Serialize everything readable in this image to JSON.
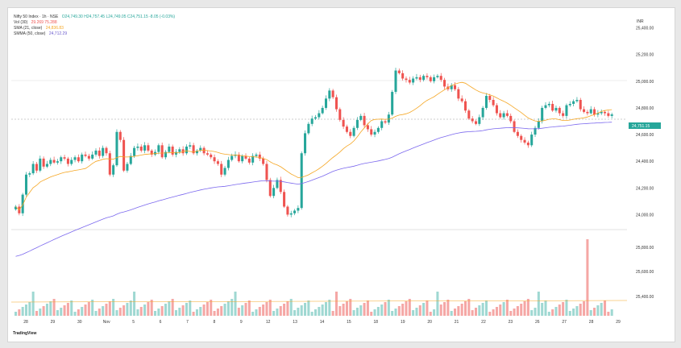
{
  "legend": {
    "symbol": "Nifty 50 Index · 1h · NSE",
    "ohlc": "O24,749.30  H24,757.45  L24,749.05  C24,751.15  -8.05 (-0.03%)",
    "vol_label": "Vol (30)",
    "vol_values": "29.269  75.288",
    "sma_label": "SMA (21, close)",
    "sma_value": "24,836.83",
    "smma_label": "SMMA (50, close)",
    "smma_value": "24,712.29"
  },
  "currency": "INR",
  "brand": "TradingView",
  "colors": {
    "up": "#26a69a",
    "down": "#ef5350",
    "sma": "#f5a623",
    "smma": "#7b68ee",
    "vol_up": "#9fd8d2",
    "vol_down": "#f5a7a5"
  },
  "chart_data": {
    "type": "candlestick",
    "price_axis": [
      "25,400.00",
      "25,200.00",
      "25,000.00",
      "24,800.00",
      "24,600.00",
      "24,400.00",
      "24,200.00",
      "24,000.00"
    ],
    "volume_axis": [
      "25,800.00",
      "25,600.00",
      "25,400.00"
    ],
    "ylim": [
      23900,
      25500
    ],
    "last_price_label": "24,751.15",
    "x_ticks": [
      "28",
      "29",
      "30",
      "Nov",
      "5",
      "6",
      "7",
      "8",
      "9",
      "12",
      "13",
      "14",
      "15",
      "18",
      "19",
      "20",
      "21",
      "22",
      "23",
      "26",
      "27",
      "28",
      "29"
    ],
    "closes": [
      24060,
      24010,
      24150,
      24300,
      24310,
      24380,
      24330,
      24420,
      24360,
      24380,
      24410,
      24390,
      24400,
      24430,
      24420,
      24380,
      24410,
      24430,
      24400,
      24450,
      24440,
      24420,
      24450,
      24480,
      24440,
      24500,
      24460,
      24300,
      24370,
      24620,
      24560,
      24330,
      24380,
      24440,
      24500,
      24510,
      24480,
      24520,
      24480,
      24450,
      24470,
      24520,
      24430,
      24470,
      24510,
      24450,
      24470,
      24490,
      24460,
      24510,
      24520,
      24460,
      24480,
      24500,
      24460,
      24450,
      24430,
      24400,
      24380,
      24300,
      24350,
      24410,
      24440,
      24450,
      24400,
      24440,
      24420,
      24390,
      24440,
      24450,
      24420,
      24380,
      24260,
      24140,
      24200,
      24260,
      24170,
      24060,
      24000,
      24010,
      24030,
      24050,
      24460,
      24610,
      24680,
      24720,
      24730,
      24760,
      24800,
      24870,
      24930,
      24880,
      24790,
      24710,
      24660,
      24620,
      24590,
      24650,
      24710,
      24740,
      24670,
      24640,
      24600,
      24620,
      24650,
      24700,
      24690,
      24750,
      24920,
      25080,
      25060,
      25020,
      25010,
      24990,
      25020,
      25030,
      25010,
      25040,
      25030,
      25000,
      25030,
      25040,
      25010,
      24960,
      24940,
      24970,
      24940,
      24870,
      24850,
      24780,
      24720,
      24700,
      24680,
      24730,
      24800,
      24890,
      24860,
      24820,
      24760,
      24730,
      24760,
      24740,
      24700,
      24620,
      24590,
      24560,
      24540,
      24520,
      24600,
      24650,
      24700,
      24800,
      24820,
      24830,
      24780,
      24800,
      24760,
      24740,
      24820,
      24830,
      24850,
      24860,
      24790,
      24770,
      24760,
      24790,
      24750,
      24760,
      24770,
      24760,
      24740,
      24751.15
    ],
    "volume_spike_index": 164
  }
}
